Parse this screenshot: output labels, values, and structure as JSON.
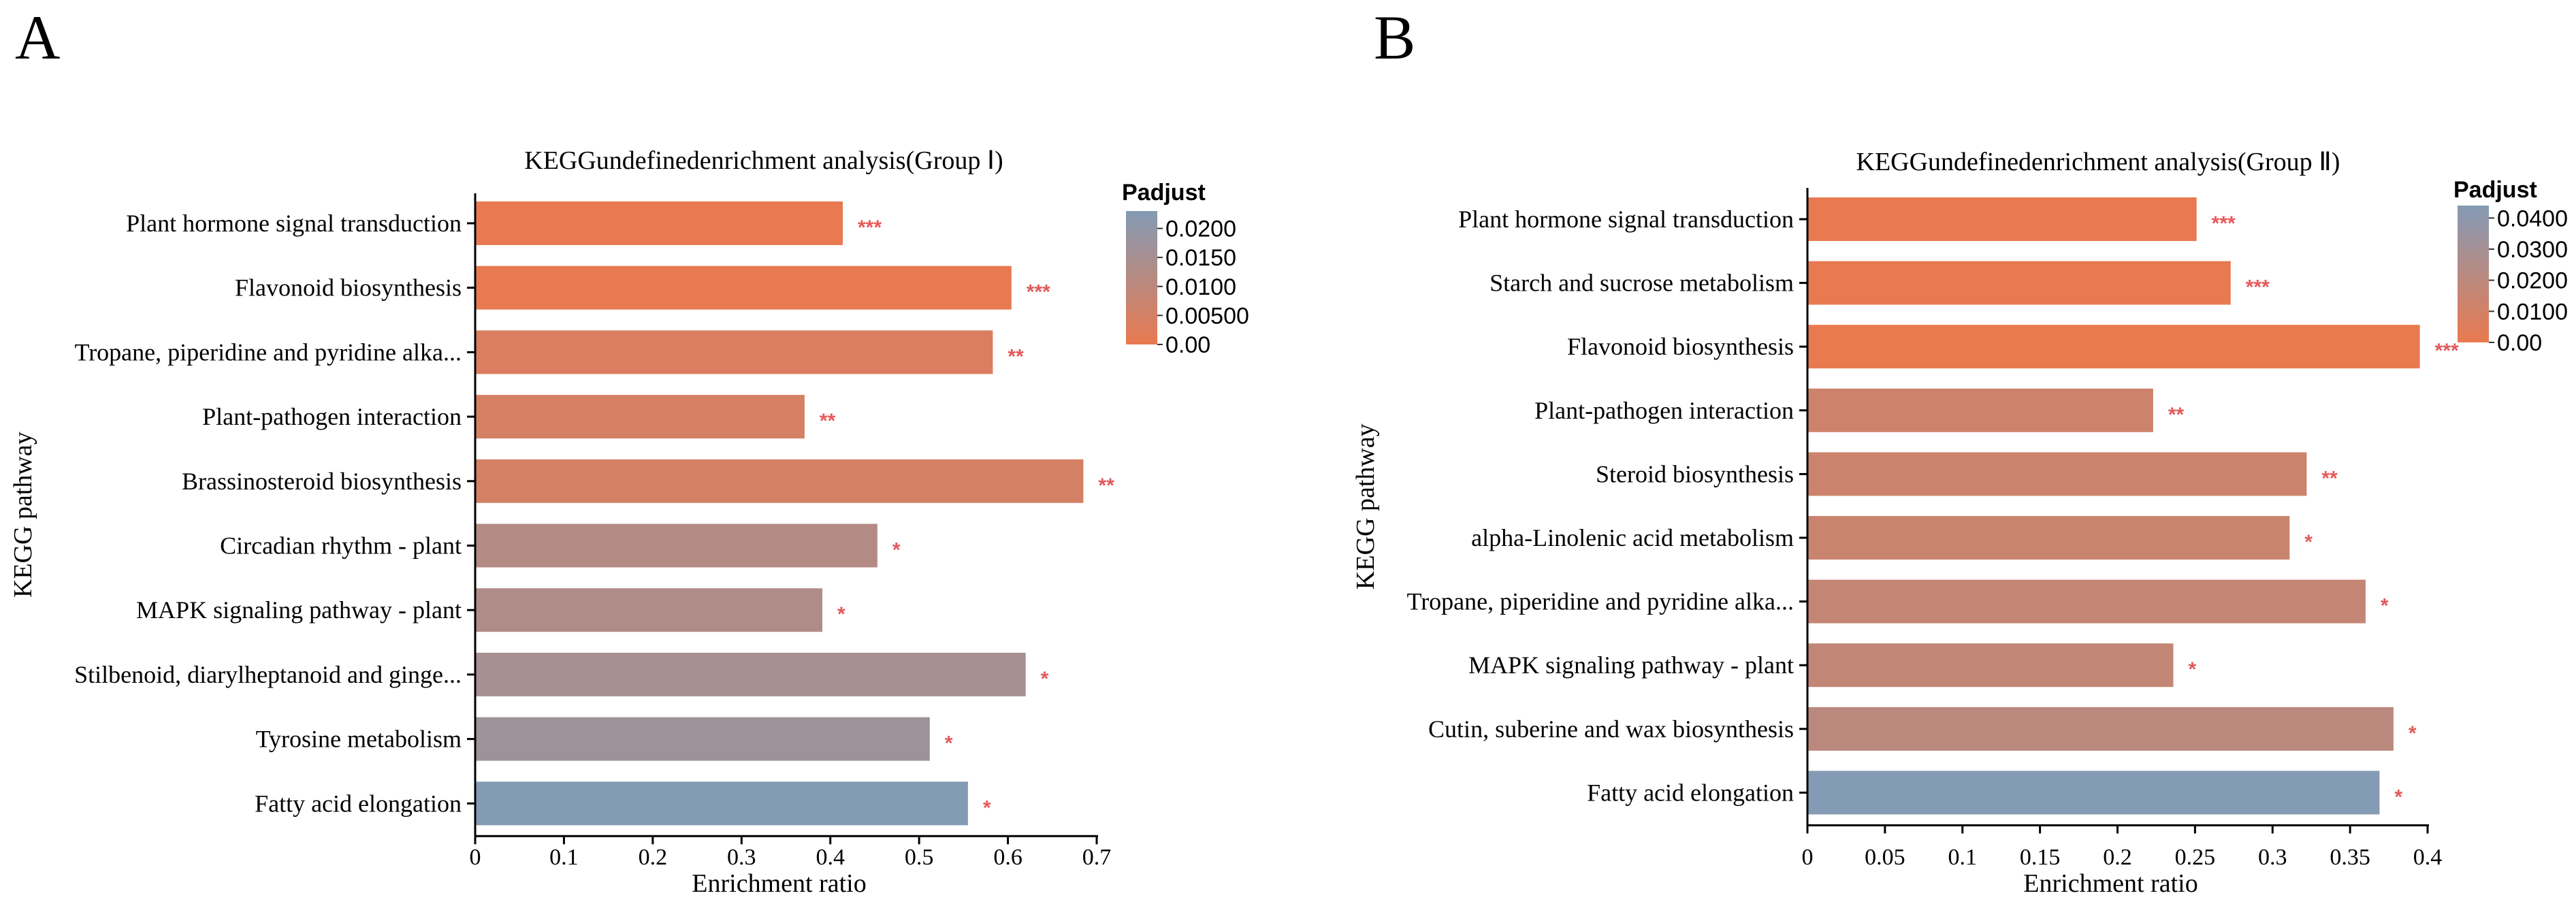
{
  "figure": {
    "panel_letters": [
      "A",
      "B"
    ]
  },
  "colors": {
    "low": "#E9794F",
    "high": "#849BB5",
    "star": "#E45A5A",
    "axis": "#000000"
  },
  "chart_data": [
    {
      "type": "bar",
      "orientation": "horizontal",
      "panel": "A",
      "title": "KEGGundefinedenrichment analysis(Group Ⅰ)",
      "xlabel": "Enrichment ratio",
      "ylabel": "KEGG pathway",
      "xlim": [
        0,
        0.7
      ],
      "xticks": [
        "0",
        "0.1",
        "0.2",
        "0.3",
        "0.4",
        "0.5",
        "0.6",
        "0.7"
      ],
      "xtick_values": [
        0,
        0.1,
        0.2,
        0.3,
        0.4,
        0.5,
        0.6,
        0.7
      ],
      "categories": [
        "Plant hormone signal transduction",
        "Flavonoid biosynthesis",
        "Tropane, piperidine and pyridine alka...",
        "Plant-pathogen interaction",
        "Brassinosteroid biosynthesis",
        "Circadian rhythm - plant",
        "MAPK signaling pathway - plant",
        "Stilbenoid, diarylheptanoid and ginge...",
        "Tyrosine metabolism",
        "Fatty acid elongation"
      ],
      "values": [
        0.414,
        0.604,
        0.583,
        0.371,
        0.685,
        0.453,
        0.391,
        0.62,
        0.512,
        0.555
      ],
      "padjust": [
        0.0002,
        0.0004,
        0.0035,
        0.0045,
        0.005,
        0.012,
        0.013,
        0.015,
        0.017,
        0.023
      ],
      "significance": [
        "***",
        "***",
        "**",
        "**",
        "**",
        "*",
        "*",
        "*",
        "*",
        "*"
      ],
      "legend": {
        "title": "Padjust",
        "placement": "top-right",
        "range": [
          0,
          0.023
        ],
        "tick_values": [
          0.02,
          0.015,
          0.01,
          0.005,
          0
        ],
        "tick_labels": [
          "0.0200",
          "0.0150",
          "0.0100",
          "0.00500",
          "0.00"
        ]
      }
    },
    {
      "type": "bar",
      "orientation": "horizontal",
      "panel": "B",
      "title": "KEGGundefinedenrichment analysis(Group Ⅱ)",
      "xlabel": "Enrichment ratio",
      "ylabel": "KEGG pathway",
      "xlim": [
        0,
        0.4
      ],
      "xticks": [
        "0",
        "0.05",
        "0.1",
        "0.15",
        "0.2",
        "0.25",
        "0.3",
        "0.35",
        "0.4"
      ],
      "xtick_values": [
        0,
        0.05,
        0.1,
        0.15,
        0.2,
        0.25,
        0.3,
        0.35,
        0.4
      ],
      "categories": [
        "Plant hormone signal transduction",
        "Starch and sucrose metabolism",
        "Flavonoid biosynthesis",
        "Plant-pathogen interaction",
        "Steroid biosynthesis",
        "alpha-Linolenic acid metabolism",
        "Tropane, piperidine and pyridine alka...",
        "MAPK signaling pathway - plant",
        "Cutin, suberine and wax biosynthesis",
        "Fatty acid elongation"
      ],
      "values": [
        0.251,
        0.273,
        0.395,
        0.223,
        0.322,
        0.311,
        0.36,
        0.236,
        0.378,
        0.369
      ],
      "padjust": [
        0.0008,
        0.001,
        0.0002,
        0.012,
        0.013,
        0.014,
        0.016,
        0.017,
        0.02,
        0.044
      ],
      "significance": [
        "***",
        "***",
        "***",
        "**",
        "**",
        "*",
        "*",
        "*",
        "*",
        "*"
      ],
      "legend": {
        "title": "Padjust",
        "placement": "top-right",
        "range": [
          0,
          0.044
        ],
        "tick_values": [
          0.04,
          0.03,
          0.02,
          0.01,
          0
        ],
        "tick_labels": [
          "0.0400",
          "0.0300",
          "0.0200",
          "0.0100",
          "0.00"
        ]
      }
    }
  ]
}
